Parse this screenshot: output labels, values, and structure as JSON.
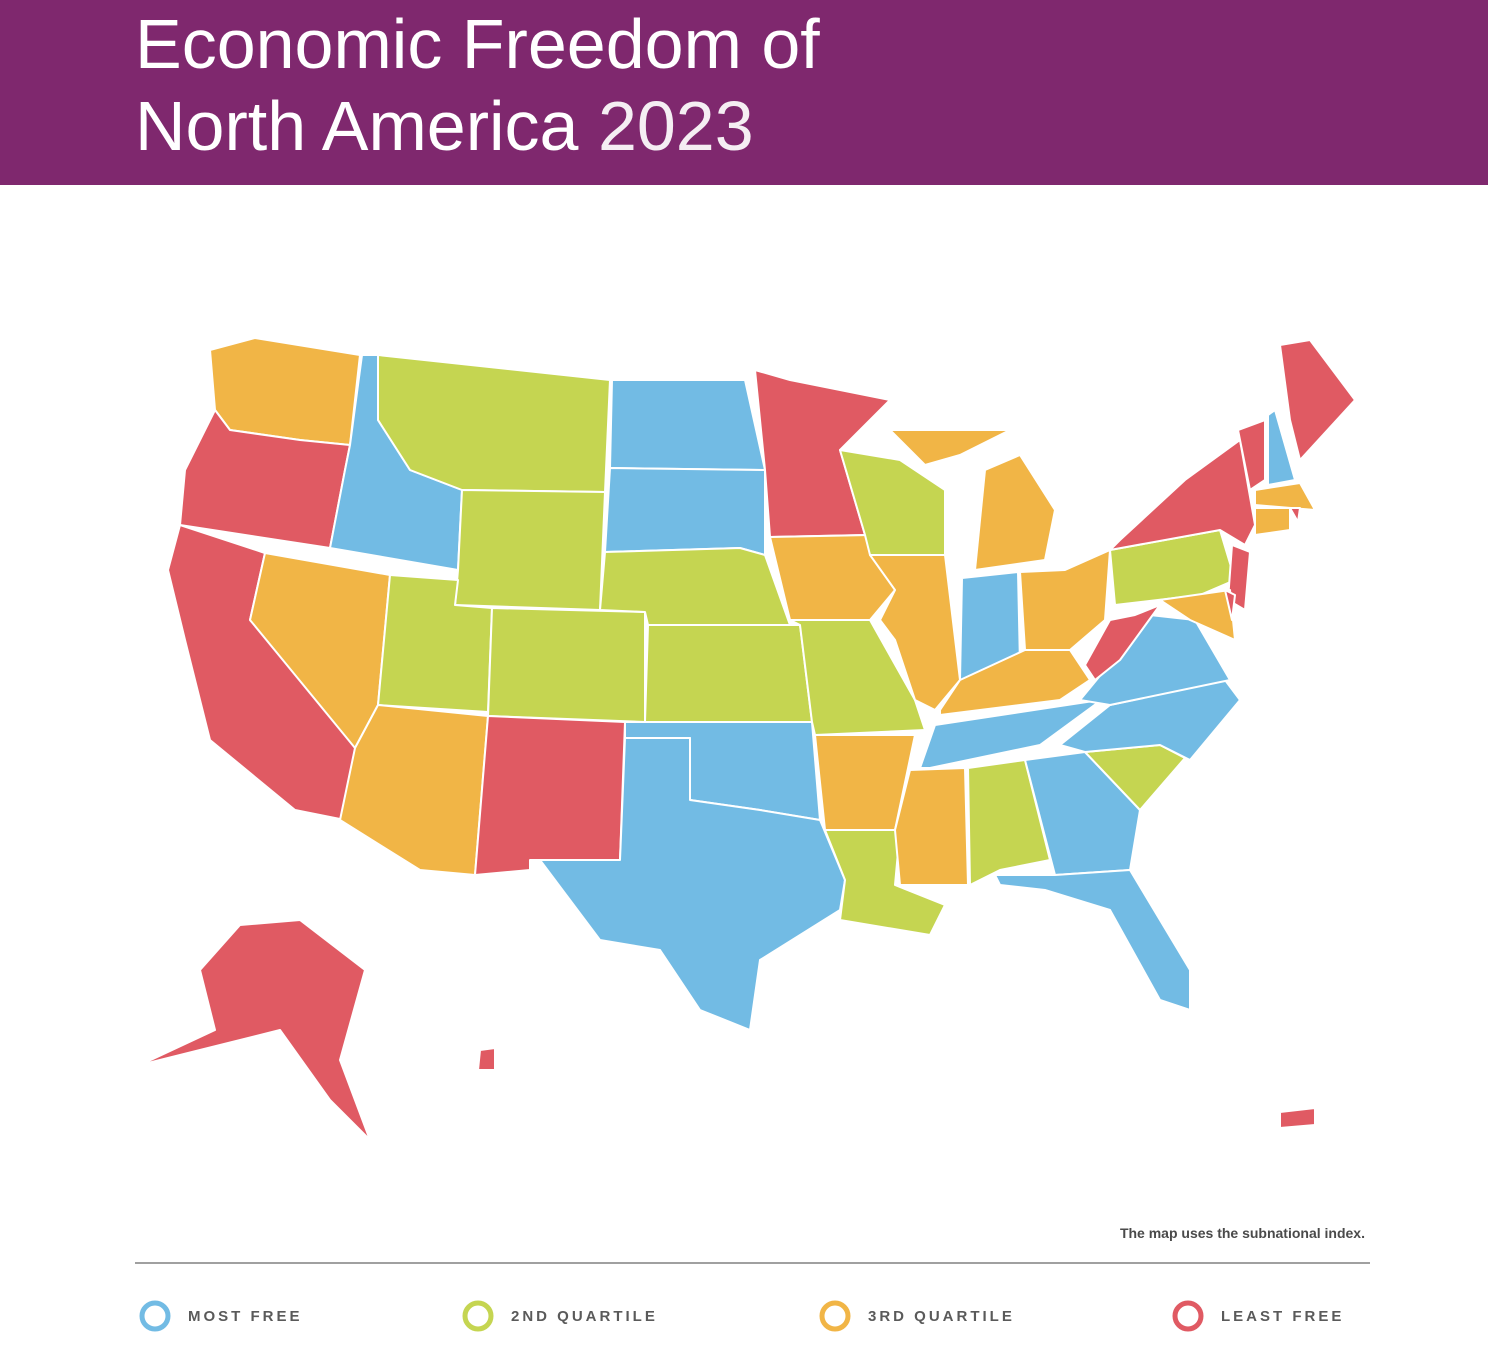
{
  "header": {
    "title": [
      "Economic Freedom of",
      "North America"
    ],
    "year": "2023"
  },
  "legend": [
    {
      "label": "MOST FREE",
      "color": "#72bbe4"
    },
    {
      "label": "2ND QUARTILE",
      "color": "#c5d551"
    },
    {
      "label": "3RD QUARTILE",
      "color": "#f1b546"
    },
    {
      "label": "LEAST FREE",
      "color": "#e05a63"
    }
  ],
  "note": "The map uses the subnational index."
}
